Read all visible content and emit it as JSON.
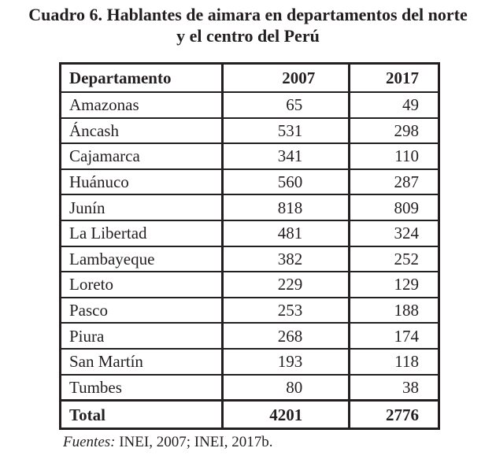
{
  "title": {
    "line1": "Cuadro 6. Hablantes de aimara en departamentos del norte",
    "line2": "y el centro del Perú"
  },
  "table": {
    "headers": [
      "Departamento",
      "2007",
      "2017"
    ],
    "rows": [
      [
        "Amazonas",
        "65",
        "49"
      ],
      [
        "Áncash",
        "531",
        "298"
      ],
      [
        "Cajamarca",
        "341",
        "110"
      ],
      [
        "Huánuco",
        "560",
        "287"
      ],
      [
        "Junín",
        "818",
        "809"
      ],
      [
        "La Libertad",
        "481",
        "324"
      ],
      [
        "Lambayeque",
        "382",
        "252"
      ],
      [
        "Loreto",
        "229",
        "129"
      ],
      [
        "Pasco",
        "253",
        "188"
      ],
      [
        "Piura",
        "268",
        "174"
      ],
      [
        "San Martín",
        "193",
        "118"
      ],
      [
        "Tumbes",
        "80",
        "38"
      ]
    ],
    "total": [
      "Total",
      "4201",
      "2776"
    ]
  },
  "source": {
    "label": "Fuentes:",
    "text": " INEI, 2007; INEI, 2017b."
  }
}
